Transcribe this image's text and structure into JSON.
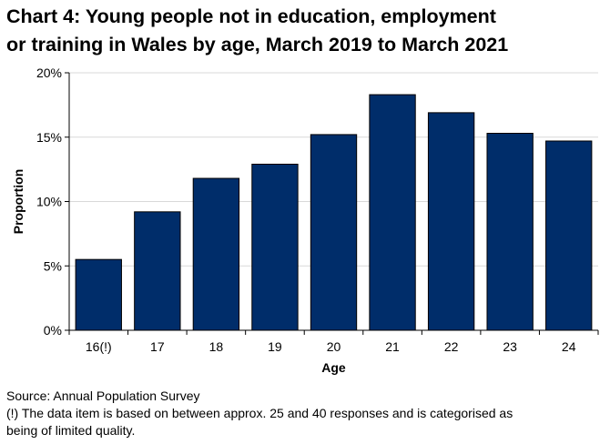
{
  "chart_data": {
    "type": "bar",
    "title_lines": [
      "Chart 4: Young people not in education, employment",
      "or training in Wales by age, March 2019 to March 2021"
    ],
    "xlabel": "Age",
    "ylabel": "Proportion",
    "categories": [
      "16(!)",
      "17",
      "18",
      "19",
      "20",
      "21",
      "22",
      "23",
      "24"
    ],
    "values": [
      5.5,
      9.2,
      11.8,
      12.9,
      15.2,
      18.3,
      16.9,
      15.3,
      14.7
    ],
    "ylim": [
      0,
      20
    ],
    "yticks": [
      0,
      5,
      10,
      15,
      20
    ],
    "ytick_labels": [
      "0%",
      "5%",
      "10%",
      "15%",
      "20%"
    ],
    "grid": true,
    "bar_color": "#002D6A",
    "grid_color": "#d9d9d9"
  },
  "footer": {
    "source": "Source: Annual Population Survey",
    "note_line1": "(!) The data item is based on between approx. 25 and 40 responses and is categorised as",
    "note_line2": "being of limited quality."
  }
}
